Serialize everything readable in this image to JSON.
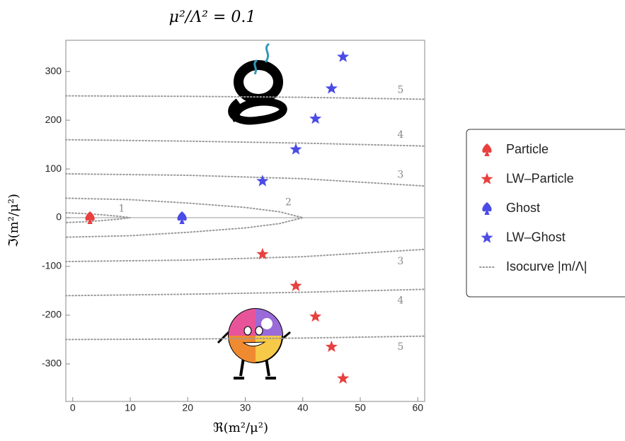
{
  "chart_data": {
    "type": "scatter",
    "title": "μ²/Λ² = 0.1",
    "x_label": "ℜ(m²/μ²)",
    "y_label": "ℑ(m²/μ²)",
    "xlim": [
      -1.2,
      61.2
    ],
    "ylim": [
      -377,
      364
    ],
    "xticks": [
      0,
      10,
      20,
      30,
      40,
      50,
      60
    ],
    "yticks": [
      -300,
      -200,
      -100,
      0,
      100,
      200,
      300
    ],
    "series": [
      {
        "name": "Particle",
        "color": "#e8403f",
        "marker": "spade",
        "x": [
          3
        ],
        "values": [
          0
        ]
      },
      {
        "name": "LW–Particle",
        "color": "#e8403f",
        "marker": "star",
        "x": [
          33,
          38.8,
          42.2,
          45,
          47
        ],
        "values": [
          -75,
          -140,
          -203,
          -265,
          -330
        ]
      },
      {
        "name": "Ghost",
        "color": "#4b4be6",
        "marker": "spade",
        "x": [
          19
        ],
        "values": [
          0
        ]
      },
      {
        "name": "LW–Ghost",
        "color": "#4b4be6",
        "marker": "star",
        "x": [
          33,
          38.8,
          42.2,
          45,
          47
        ],
        "values": [
          75,
          140,
          203,
          265,
          330
        ]
      }
    ],
    "isocurves": {
      "name": "Isocurve |m/Λ|",
      "color": "#999999",
      "curves": [
        {
          "x": [
            -1.2,
            2,
            5,
            8,
            10,
            8,
            5,
            2,
            -1.2
          ],
          "values": [
            10,
            8.5,
            6,
            3,
            0,
            -3,
            -6,
            -8.5,
            -10
          ],
          "labels": [
            {
              "text": 1,
              "x": 8.5,
              "y": 18
            }
          ]
        },
        {
          "x": [
            -1.2,
            10,
            20,
            30,
            36,
            40,
            36,
            30,
            20,
            10,
            -1.2
          ],
          "values": [
            40,
            37,
            30,
            21,
            12,
            0,
            -12,
            -21,
            -30,
            -37,
            -40
          ],
          "labels": [
            {
              "text": 2,
              "x": 37.5,
              "y": 31
            }
          ]
        },
        {
          "x": [
            -1.2,
            20,
            40,
            61.2,
            null,
            -1.2,
            20,
            40,
            61.2
          ],
          "values": [
            90,
            87,
            80,
            65,
            null,
            -90,
            -87,
            -80,
            -65
          ],
          "labels": [
            {
              "text": 3,
              "x": 57,
              "y": 88
            },
            {
              "text": 3,
              "x": 57,
              "y": -90
            }
          ]
        },
        {
          "x": [
            -1.2,
            20,
            40,
            61.2,
            null,
            -1.2,
            20,
            40,
            61.2
          ],
          "values": [
            160,
            157,
            153,
            147,
            null,
            -160,
            -157,
            -153,
            -147
          ],
          "labels": [
            {
              "text": 4,
              "x": 57,
              "y": 170
            },
            {
              "text": 4,
              "x": 57,
              "y": -170
            }
          ]
        },
        {
          "x": [
            -1.2,
            20,
            40,
            61.2,
            null,
            -1.2,
            20,
            40,
            61.2
          ],
          "values": [
            250,
            249,
            247,
            243,
            null,
            -250,
            -249,
            -247,
            -243
          ],
          "labels": [
            {
              "text": 5,
              "x": 57,
              "y": 262
            },
            {
              "text": 5,
              "x": 57,
              "y": -265
            }
          ]
        }
      ]
    }
  }
}
